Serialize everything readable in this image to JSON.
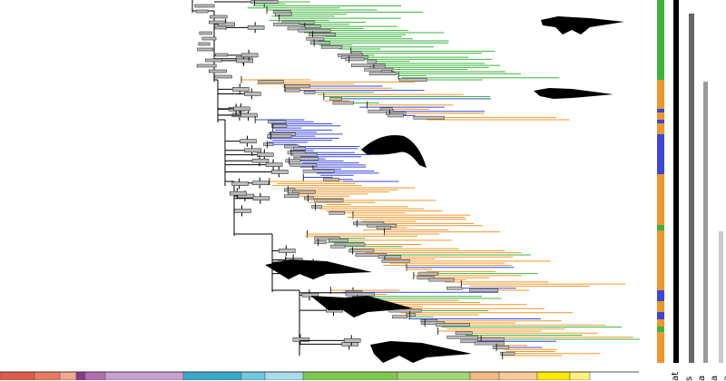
{
  "colors": {
    "terrestrial": "#3cb43c",
    "freshwater": "#f0962a",
    "marine": "#3c46dc",
    "branch": "#000000",
    "node_bar_fill": "#bbbbbb"
  },
  "clade_bars": [
    {
      "name": "clade-bar-1",
      "shade": "#000000"
    },
    {
      "name": "clade-bar-2",
      "shade": "#666666"
    },
    {
      "name": "clade-bar-3",
      "shade": "#999999"
    },
    {
      "name": "clade-bar-4",
      "shade": "#c8c8c8"
    }
  ],
  "side_labels": [
    "at",
    "s",
    "a",
    "a",
    "a"
  ],
  "habitat_strip": [
    {
      "color": "terrestrial",
      "from": 0.0,
      "to": 0.22
    },
    {
      "color": "freshwater",
      "from": 0.22,
      "to": 0.3
    },
    {
      "color": "marine",
      "from": 0.3,
      "to": 0.31
    },
    {
      "color": "freshwater",
      "from": 0.31,
      "to": 0.33
    },
    {
      "color": "marine",
      "from": 0.33,
      "to": 0.34
    },
    {
      "color": "freshwater",
      "from": 0.34,
      "to": 0.37
    },
    {
      "color": "marine",
      "from": 0.37,
      "to": 0.48
    },
    {
      "color": "freshwater",
      "from": 0.48,
      "to": 0.62
    },
    {
      "color": "terrestrial",
      "from": 0.62,
      "to": 0.635
    },
    {
      "color": "freshwater",
      "from": 0.635,
      "to": 0.8
    },
    {
      "color": "marine",
      "from": 0.8,
      "to": 0.83
    },
    {
      "color": "freshwater",
      "from": 0.83,
      "to": 0.86
    },
    {
      "color": "marine",
      "from": 0.86,
      "to": 0.88
    },
    {
      "color": "freshwater",
      "from": 0.88,
      "to": 0.9
    },
    {
      "color": "terrestrial",
      "from": 0.9,
      "to": 0.915
    },
    {
      "color": "freshwater",
      "from": 0.915,
      "to": 1.0
    }
  ],
  "timescale": [
    "#e05a4a",
    "#e87a62",
    "#f0a890",
    "#8a3a8a",
    "#b070b0",
    "#c8a0d0",
    "#3aa8c8",
    "#70c8e0",
    "#a8dcec",
    "#7cc850",
    "#a0d870",
    "#f4b884",
    "#f8c898",
    "#ffe800",
    "#fff27a"
  ],
  "silhouettes": [
    "protosuchian-silhouette",
    "thalattosuchian-silhouette",
    "metriorhynchid-silhouette",
    "alligatorid-silhouette",
    "gavialid-silhouette",
    "crocodylid-silhouette"
  ]
}
